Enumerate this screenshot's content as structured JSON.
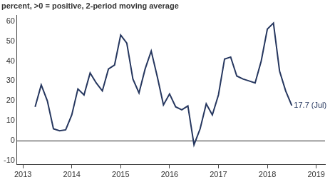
{
  "chart_data": {
    "type": "line",
    "subtitle": "percent, >0 = positive, 2-period moving average",
    "annotation": "17.7 (Jul)",
    "x": [
      2013.25,
      2013.375,
      2013.5,
      2013.625,
      2013.75,
      2013.875,
      2014,
      2014.125,
      2014.25,
      2014.375,
      2014.5,
      2014.625,
      2014.75,
      2014.875,
      2015,
      2015.125,
      2015.25,
      2015.375,
      2015.5,
      2015.625,
      2015.75,
      2015.875,
      2016,
      2016.125,
      2016.25,
      2016.375,
      2016.5,
      2016.625,
      2016.75,
      2016.875,
      2017,
      2017.125,
      2017.25,
      2017.375,
      2017.5,
      2017.625,
      2017.75,
      2017.875,
      2018,
      2018.125,
      2018.25,
      2018.375,
      2018.5
    ],
    "values": [
      17,
      28,
      20,
      6,
      5,
      5.5,
      13,
      26,
      23,
      34,
      29,
      25,
      36,
      38,
      53,
      49,
      31,
      24,
      36,
      45,
      32,
      18,
      23.5,
      17,
      15.5,
      17.5,
      -2,
      6,
      18.5,
      13,
      23,
      41,
      42,
      32.5,
      31,
      30,
      29,
      40,
      56,
      59,
      35,
      25,
      17.7
    ],
    "color": "#26375f",
    "xlim": [
      2012.88,
      2019.18
    ],
    "xticks": [
      2013,
      2014,
      2015,
      2016,
      2017,
      2018,
      2019
    ],
    "ylim": [
      -12,
      63
    ],
    "yticks": [
      -10,
      0,
      10,
      20,
      30,
      40,
      50,
      60
    ]
  }
}
